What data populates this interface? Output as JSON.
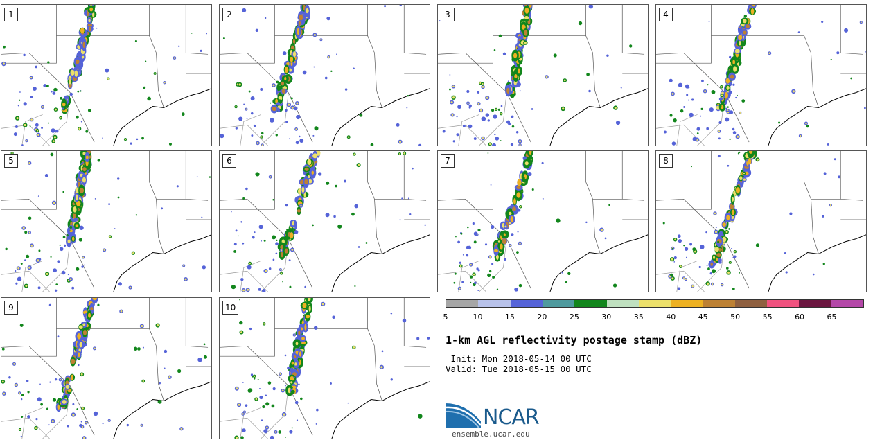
{
  "panels": [
    {
      "label": "1",
      "seed": 11
    },
    {
      "label": "2",
      "seed": 23
    },
    {
      "label": "3",
      "seed": 37
    },
    {
      "label": "4",
      "seed": 41
    },
    {
      "label": "5",
      "seed": 53
    },
    {
      "label": "6",
      "seed": 67
    },
    {
      "label": "7",
      "seed": 71
    },
    {
      "label": "8",
      "seed": 89
    },
    {
      "label": "9",
      "seed": 97
    },
    {
      "label": "10",
      "seed": 103
    }
  ],
  "colorbar": {
    "colors": [
      "#a6a6a6",
      "#b8c2ea",
      "#5563d8",
      "#4f9a9e",
      "#12861c",
      "#bfe0bf",
      "#ece06b",
      "#edb122",
      "#bd8134",
      "#8f6040",
      "#f0527f",
      "#6b1640",
      "#b448a8"
    ],
    "labels": [
      "5",
      "10",
      "15",
      "20",
      "25",
      "30",
      "35",
      "40",
      "45",
      "50",
      "55",
      "60",
      "65"
    ]
  },
  "title": "1-km AGL reflectivity postage stamp (dBZ)",
  "init": " Init: Mon 2018-05-14 00 UTC",
  "valid": "Valid: Tue 2018-05-15 00 UTC",
  "logo": {
    "text": "NCAR",
    "url": "ensemble.ucar.edu"
  }
}
